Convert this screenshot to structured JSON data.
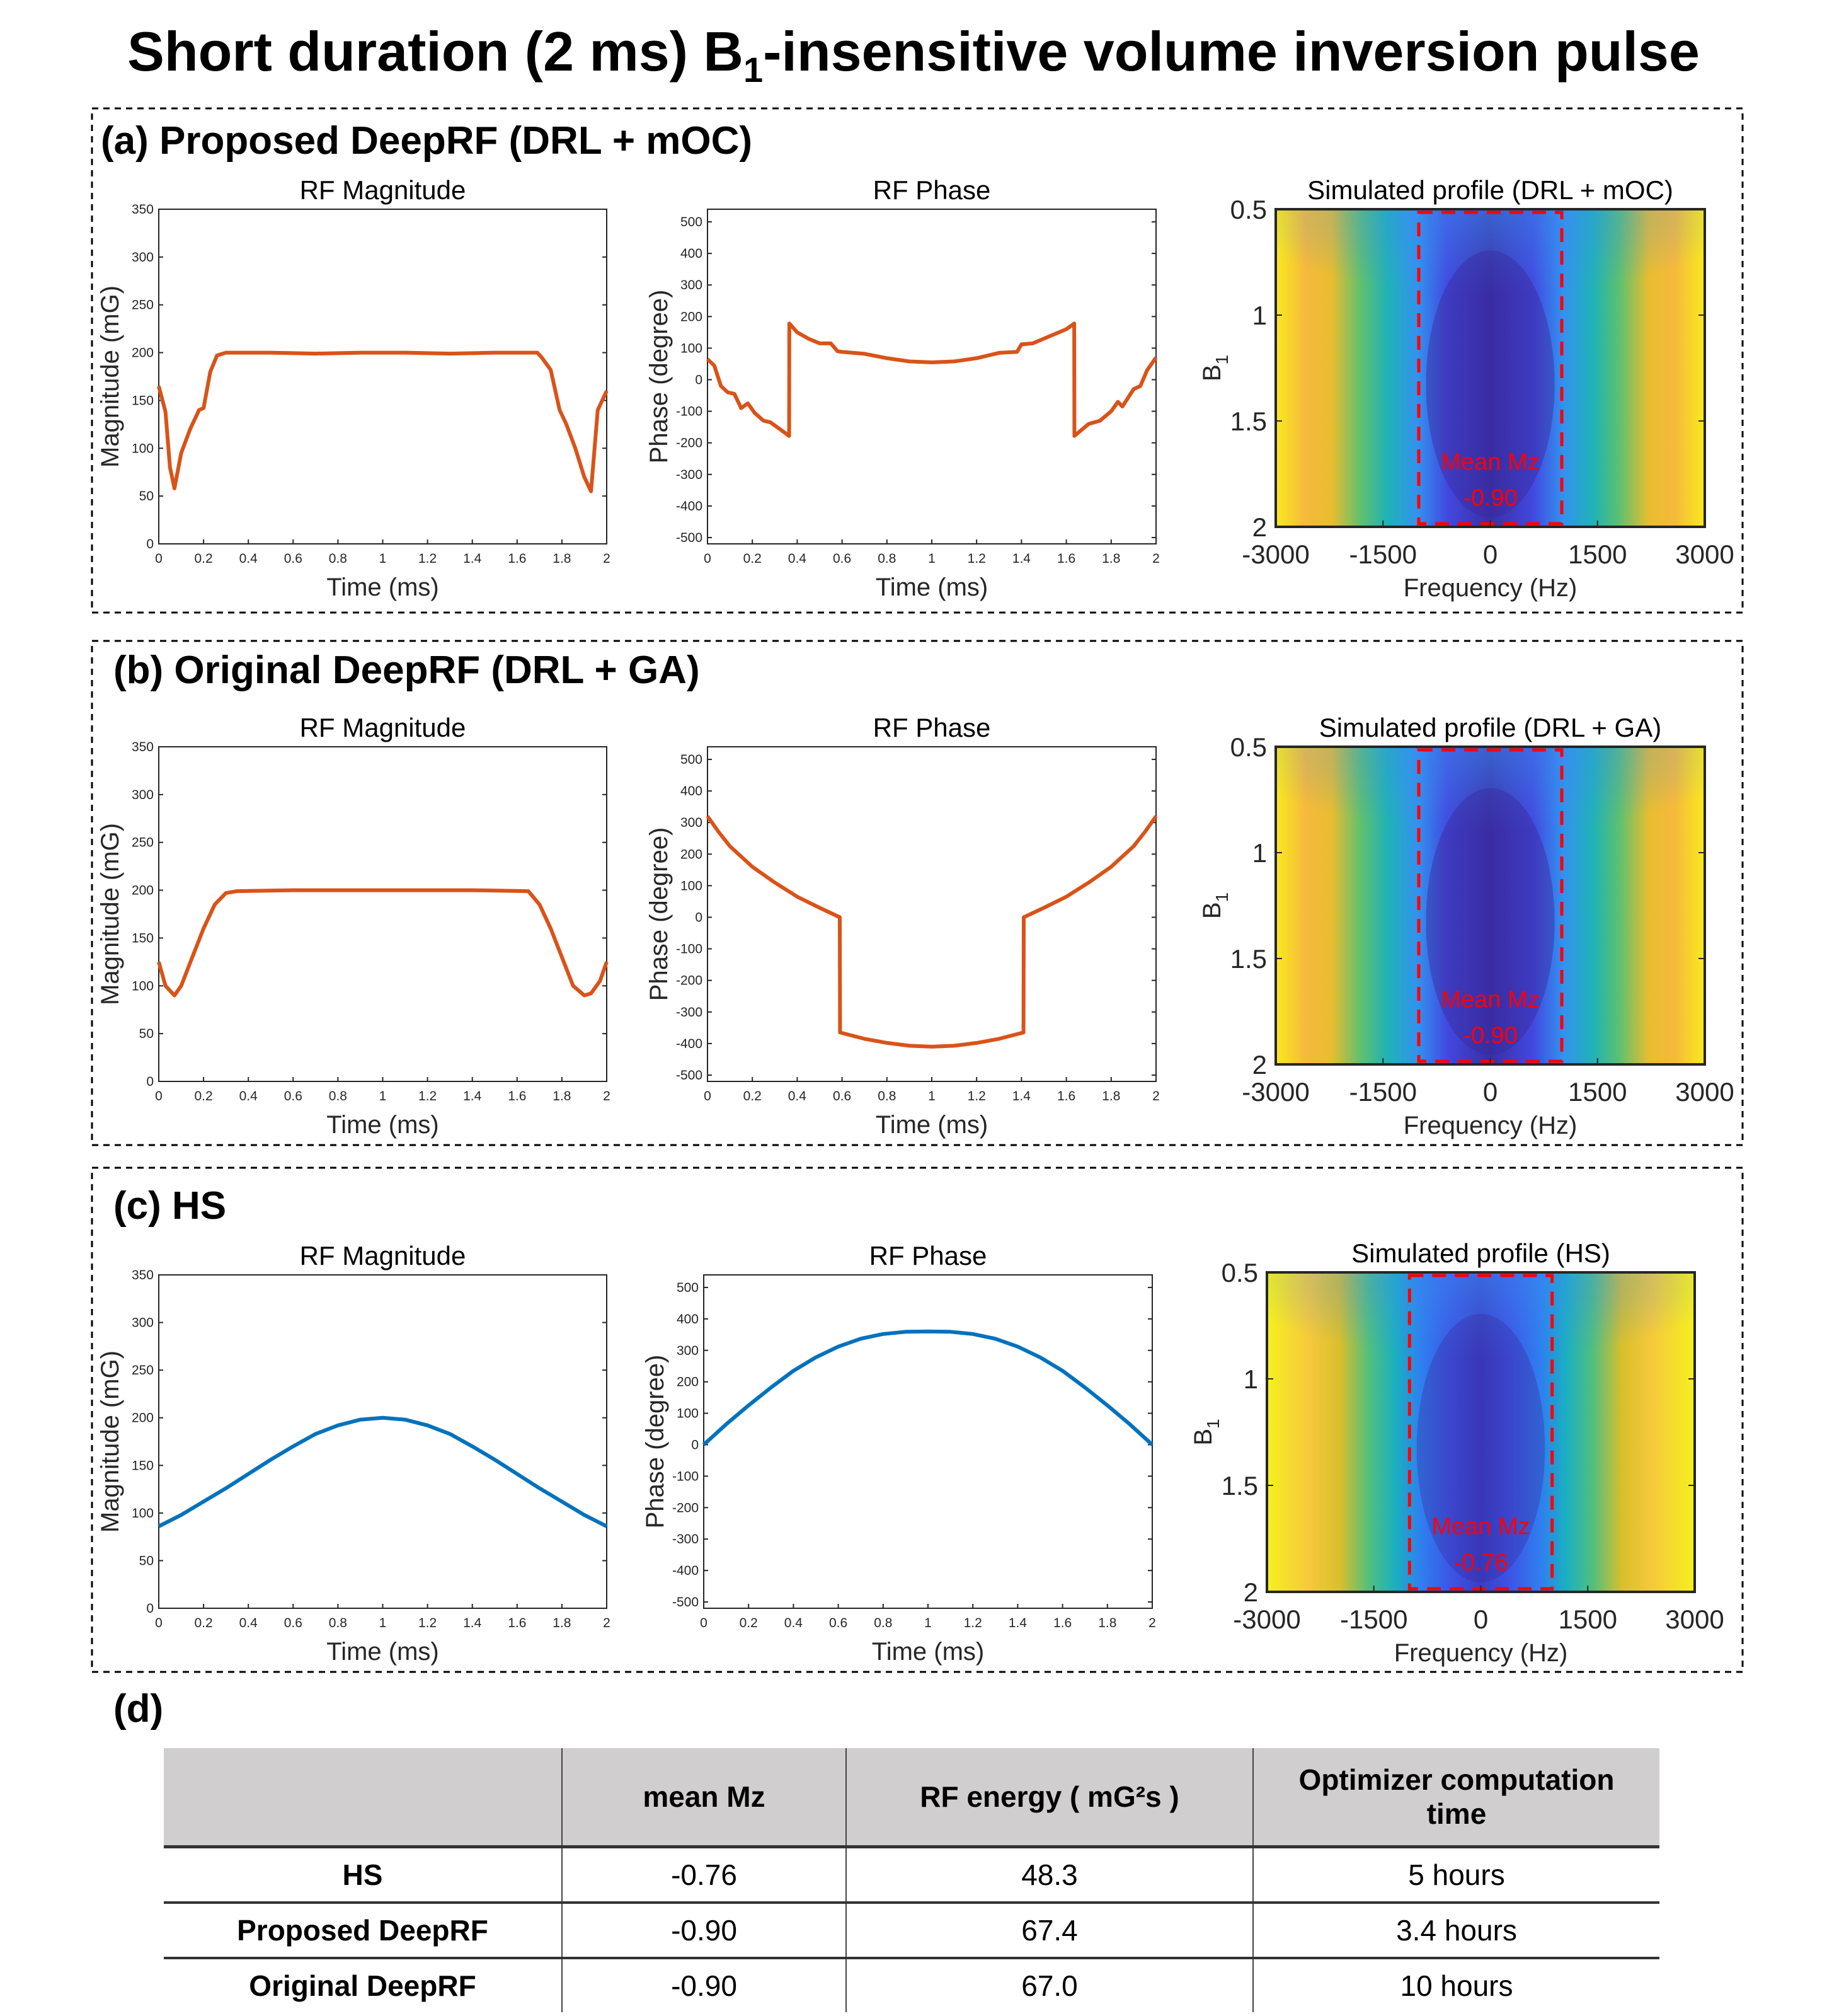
{
  "title_main": "Short duration (2 ms) B",
  "title_sub": "1",
  "title_rest": "-insensitive volume inversion pulse",
  "panels": [
    {
      "label": "(a) Proposed DeepRF (DRL + mOC)"
    },
    {
      "label": "(b) Original DeepRF (DRL + GA)"
    },
    {
      "label": "(c) HS"
    },
    {
      "label": "(d)"
    }
  ],
  "colors": {
    "orange": "#D95319",
    "blue": "#0072BD",
    "roi": "#FF0000"
  },
  "chart_data": [
    {
      "id": "a-mag",
      "type": "line",
      "title": "RF Magnitude",
      "xlabel": "Time (ms)",
      "ylabel": "Magnitude (mG)",
      "xlim": [
        0,
        2
      ],
      "ylim": [
        0,
        350
      ],
      "xticks": [
        0,
        0.2,
        0.4,
        0.6,
        0.8,
        1,
        1.2,
        1.4,
        1.6,
        1.8,
        2
      ],
      "yticks": [
        0,
        50,
        100,
        150,
        200,
        250,
        300,
        350
      ],
      "color": "#D95319",
      "x": [
        0,
        0.03,
        0.05,
        0.07,
        0.1,
        0.14,
        0.18,
        0.2,
        0.23,
        0.26,
        0.3,
        0.5,
        0.7,
        0.9,
        1.1,
        1.3,
        1.5,
        1.69,
        1.71,
        1.75,
        1.79,
        1.82,
        1.86,
        1.9,
        1.93,
        1.96,
        2
      ],
      "y": [
        165,
        138,
        80,
        58,
        95,
        120,
        140,
        142,
        180,
        197,
        200,
        200,
        199,
        200,
        200,
        199,
        200,
        200,
        195,
        182,
        140,
        125,
        100,
        70,
        55,
        140,
        160
      ]
    },
    {
      "id": "a-phase",
      "type": "line",
      "title": "RF Phase",
      "xlabel": "Time (ms)",
      "ylabel": "Phase (degree)",
      "xlim": [
        0,
        2
      ],
      "ylim": [
        -520,
        540
      ],
      "xticks": [
        0,
        0.2,
        0.4,
        0.6,
        0.8,
        1,
        1.2,
        1.4,
        1.6,
        1.8,
        2
      ],
      "yticks": [
        -500,
        -400,
        -300,
        -200,
        -100,
        0,
        100,
        200,
        300,
        400,
        500
      ],
      "color": "#D95319",
      "x": [
        0,
        0.03,
        0.06,
        0.09,
        0.12,
        0.15,
        0.18,
        0.21,
        0.25,
        0.28,
        0.32,
        0.364,
        0.365,
        0.4,
        0.45,
        0.5,
        0.55,
        0.58,
        0.6,
        0.7,
        0.8,
        0.9,
        1,
        1.1,
        1.2,
        1.3,
        1.38,
        1.4,
        1.45,
        1.5,
        1.6,
        1.635,
        1.636,
        1.7,
        1.75,
        1.8,
        1.83,
        1.85,
        1.9,
        1.93,
        1.96,
        2
      ],
      "y": [
        65,
        45,
        -20,
        -40,
        -45,
        -90,
        -75,
        -105,
        -130,
        -135,
        -155,
        -178,
        178,
        150,
        130,
        115,
        115,
        90,
        88,
        82,
        68,
        58,
        55,
        58,
        68,
        85,
        88,
        112,
        115,
        130,
        160,
        178,
        -178,
        -140,
        -130,
        -100,
        -70,
        -85,
        -30,
        -20,
        30,
        70
      ]
    },
    {
      "id": "a-profile",
      "type": "heatmap",
      "title": "Simulated profile (DRL + mOC)",
      "xlabel": "Frequency (Hz)",
      "ylabel": "B1",
      "xlim": [
        -3000,
        3000
      ],
      "ylim": [
        0.5,
        2
      ],
      "xticks": [
        -3000,
        -1500,
        0,
        1500,
        3000
      ],
      "yticks": [
        0.5,
        1,
        1.5,
        2
      ],
      "roi": {
        "freq": [
          -1000,
          1000
        ],
        "b1": [
          0.5,
          2
        ]
      },
      "annotation": [
        "Mean Mz",
        "-0.90"
      ],
      "mean_mz": -0.9
    },
    {
      "id": "b-mag",
      "type": "line",
      "title": "RF Magnitude",
      "xlabel": "Time (ms)",
      "ylabel": "Magnitude (mG)",
      "xlim": [
        0,
        2
      ],
      "ylim": [
        0,
        350
      ],
      "xticks": [
        0,
        0.2,
        0.4,
        0.6,
        0.8,
        1,
        1.2,
        1.4,
        1.6,
        1.8,
        2
      ],
      "yticks": [
        0,
        50,
        100,
        150,
        200,
        250,
        300,
        350
      ],
      "color": "#D95319",
      "x": [
        0,
        0.03,
        0.07,
        0.1,
        0.15,
        0.2,
        0.25,
        0.3,
        0.35,
        0.6,
        1,
        1.4,
        1.65,
        1.7,
        1.75,
        1.8,
        1.85,
        1.9,
        1.93,
        1.97,
        2
      ],
      "y": [
        125,
        100,
        90,
        100,
        130,
        160,
        185,
        197,
        199,
        200,
        200,
        200,
        199,
        185,
        160,
        130,
        100,
        90,
        92,
        105,
        125
      ]
    },
    {
      "id": "b-phase",
      "type": "line",
      "title": "RF Phase",
      "xlabel": "Time (ms)",
      "ylabel": "Phase (degree)",
      "xlim": [
        0,
        2
      ],
      "ylim": [
        -520,
        540
      ],
      "xticks": [
        0,
        0.2,
        0.4,
        0.6,
        0.8,
        1,
        1.2,
        1.4,
        1.6,
        1.8,
        2
      ],
      "yticks": [
        -500,
        -400,
        -300,
        -200,
        -100,
        0,
        100,
        200,
        300,
        400,
        500
      ],
      "color": "#D95319",
      "x": [
        0,
        0.05,
        0.1,
        0.2,
        0.3,
        0.4,
        0.5,
        0.59,
        0.591,
        0.7,
        0.8,
        0.9,
        1,
        1.1,
        1.2,
        1.3,
        1.409,
        1.41,
        1.5,
        1.6,
        1.7,
        1.8,
        1.9,
        1.95,
        2
      ],
      "y": [
        320,
        270,
        225,
        160,
        110,
        65,
        30,
        0,
        -365,
        -385,
        -398,
        -407,
        -410,
        -407,
        -398,
        -385,
        -365,
        0,
        30,
        65,
        110,
        160,
        225,
        270,
        320
      ]
    },
    {
      "id": "b-profile",
      "type": "heatmap",
      "title": "Simulated profile (DRL + GA)",
      "xlabel": "Frequency (Hz)",
      "ylabel": "B1",
      "xlim": [
        -3000,
        3000
      ],
      "ylim": [
        0.5,
        2
      ],
      "xticks": [
        -3000,
        -1500,
        0,
        1500,
        3000
      ],
      "yticks": [
        0.5,
        1,
        1.5,
        2
      ],
      "roi": {
        "freq": [
          -1000,
          1000
        ],
        "b1": [
          0.5,
          2
        ]
      },
      "annotation": [
        "Mean Mz",
        "-0.90"
      ],
      "mean_mz": -0.9
    },
    {
      "id": "c-mag",
      "type": "line",
      "title": "RF Magnitude",
      "xlabel": "Time (ms)",
      "ylabel": "Magnitude (mG)",
      "xlim": [
        0,
        2
      ],
      "ylim": [
        0,
        350
      ],
      "xticks": [
        0,
        0.2,
        0.4,
        0.6,
        0.8,
        1,
        1.2,
        1.4,
        1.6,
        1.8,
        2
      ],
      "yticks": [
        0,
        50,
        100,
        150,
        200,
        250,
        300,
        350
      ],
      "color": "#0072BD",
      "x": [
        0,
        0.1,
        0.2,
        0.3,
        0.4,
        0.5,
        0.6,
        0.7,
        0.8,
        0.9,
        1,
        1.1,
        1.2,
        1.3,
        1.4,
        1.5,
        1.6,
        1.7,
        1.8,
        1.9,
        2
      ],
      "y": [
        86,
        98,
        112,
        126,
        141,
        156,
        170,
        183,
        192,
        198,
        200,
        198,
        192,
        183,
        170,
        156,
        141,
        126,
        112,
        98,
        86
      ]
    },
    {
      "id": "c-phase",
      "type": "line",
      "title": "RF Phase",
      "xlabel": "Time (ms)",
      "ylabel": "Phase (degree)",
      "xlim": [
        0,
        2
      ],
      "ylim": [
        -520,
        540
      ],
      "xticks": [
        0,
        0.2,
        0.4,
        0.6,
        0.8,
        1,
        1.2,
        1.4,
        1.6,
        1.8,
        2
      ],
      "yticks": [
        -500,
        -400,
        -300,
        -200,
        -100,
        0,
        100,
        200,
        300,
        400,
        500
      ],
      "color": "#0072BD",
      "x": [
        0,
        0.1,
        0.2,
        0.3,
        0.4,
        0.5,
        0.6,
        0.7,
        0.8,
        0.9,
        1,
        1.1,
        1.2,
        1.3,
        1.4,
        1.5,
        1.6,
        1.7,
        1.8,
        1.9,
        2
      ],
      "y": [
        0,
        65,
        125,
        182,
        235,
        278,
        312,
        337,
        352,
        359,
        360,
        359,
        352,
        337,
        312,
        278,
        235,
        182,
        125,
        65,
        0
      ]
    },
    {
      "id": "c-profile",
      "type": "heatmap",
      "title": "Simulated profile (HS)",
      "xlabel": "Frequency (Hz)",
      "ylabel": "B1",
      "xlim": [
        -3000,
        3000
      ],
      "ylim": [
        0.5,
        2
      ],
      "xticks": [
        -3000,
        -1500,
        0,
        1500,
        3000
      ],
      "yticks": [
        0.5,
        1,
        1.5,
        2
      ],
      "roi": {
        "freq": [
          -1000,
          1000
        ],
        "b1": [
          0.5,
          2
        ]
      },
      "annotation": [
        "Mean Mz",
        "-0.76"
      ],
      "mean_mz": -0.76
    }
  ],
  "table": {
    "headers": [
      "",
      "mean Mz",
      "RF energy ( mG²s )",
      "Optimizer computation time"
    ],
    "rows": [
      [
        "HS",
        "-0.76",
        "48.3",
        "5 hours"
      ],
      [
        "Proposed DeepRF",
        "-0.90",
        "67.4",
        "3.4 hours"
      ],
      [
        "Original DeepRF",
        "-0.90",
        "67.0",
        "10 hours"
      ]
    ]
  }
}
